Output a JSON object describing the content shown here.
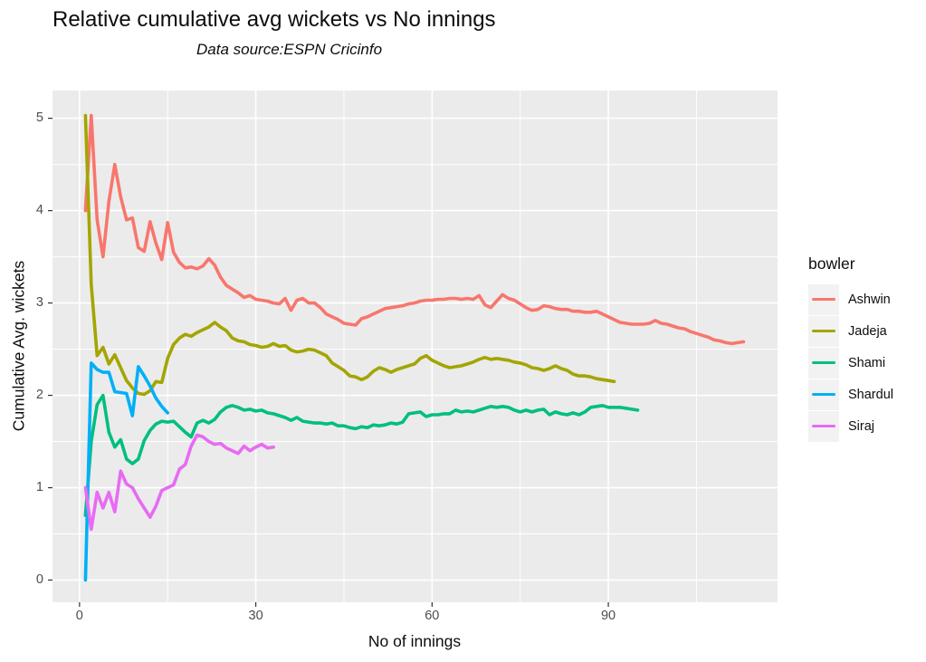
{
  "title": "Relative cumulative avg wickets vs No innings",
  "subtitle": "Data source:ESPN Cricinfo",
  "chart_data": {
    "type": "line",
    "title": "Relative cumulative avg wickets vs No innings",
    "subtitle": "Data source:ESPN Cricinfo",
    "xlabel": "No of innings",
    "ylabel": "Cumulative Avg. wickets",
    "legend_title": "bowler",
    "legend_position": "right",
    "grid": true,
    "xticks": [
      0,
      30,
      60,
      90
    ],
    "yticks": [
      0,
      1,
      2,
      3,
      4,
      5
    ],
    "xlim": [
      -4.6,
      118.8
    ],
    "ylim": [
      -0.24,
      5.3
    ],
    "x_unit": "innings number, first point at x=1, step 1",
    "colors": {
      "panel_bg": "#EBEBEB",
      "grid": "#FFFFFF",
      "axis_text": "#4D4D4D",
      "tick_mark": "#333333",
      "legend_key_bg": "#F2F2F2"
    },
    "series": [
      {
        "name": "Ashwin",
        "color": "#F8766D",
        "x_start": 1,
        "values": [
          4.0,
          5.03,
          3.9,
          3.5,
          4.1,
          4.5,
          4.15,
          3.9,
          3.92,
          3.6,
          3.56,
          3.88,
          3.65,
          3.47,
          3.87,
          3.55,
          3.44,
          3.38,
          3.39,
          3.37,
          3.4,
          3.48,
          3.41,
          3.28,
          3.19,
          3.15,
          3.11,
          3.06,
          3.08,
          3.04,
          3.03,
          3.02,
          3.0,
          2.99,
          3.05,
          2.92,
          3.03,
          3.05,
          3.0,
          3.0,
          2.95,
          2.88,
          2.85,
          2.82,
          2.78,
          2.77,
          2.76,
          2.83,
          2.85,
          2.88,
          2.91,
          2.94,
          2.95,
          2.96,
          2.97,
          2.99,
          3.0,
          3.02,
          3.03,
          3.03,
          3.04,
          3.04,
          3.05,
          3.05,
          3.04,
          3.05,
          3.04,
          3.08,
          2.98,
          2.95,
          3.02,
          3.09,
          3.05,
          3.03,
          2.99,
          2.95,
          2.92,
          2.93,
          2.97,
          2.96,
          2.94,
          2.93,
          2.93,
          2.91,
          2.91,
          2.9,
          2.9,
          2.91,
          2.88,
          2.85,
          2.82,
          2.79,
          2.78,
          2.77,
          2.77,
          2.77,
          2.78,
          2.81,
          2.78,
          2.77,
          2.75,
          2.73,
          2.72,
          2.69,
          2.67,
          2.65,
          2.63,
          2.6,
          2.59,
          2.57,
          2.56,
          2.57,
          2.58
        ]
      },
      {
        "name": "Jadeja",
        "color": "#A3A500",
        "x_start": 1,
        "values": [
          5.03,
          3.2,
          2.43,
          2.52,
          2.34,
          2.44,
          2.3,
          2.16,
          2.08,
          2.02,
          2.01,
          2.05,
          2.15,
          2.14,
          2.4,
          2.55,
          2.62,
          2.66,
          2.64,
          2.68,
          2.71,
          2.74,
          2.79,
          2.74,
          2.7,
          2.62,
          2.59,
          2.58,
          2.55,
          2.54,
          2.52,
          2.53,
          2.56,
          2.53,
          2.54,
          2.49,
          2.47,
          2.48,
          2.5,
          2.49,
          2.46,
          2.43,
          2.35,
          2.31,
          2.27,
          2.21,
          2.2,
          2.17,
          2.2,
          2.26,
          2.3,
          2.28,
          2.25,
          2.28,
          2.3,
          2.32,
          2.34,
          2.4,
          2.43,
          2.38,
          2.35,
          2.32,
          2.3,
          2.31,
          2.32,
          2.34,
          2.36,
          2.39,
          2.41,
          2.39,
          2.4,
          2.39,
          2.38,
          2.36,
          2.35,
          2.33,
          2.3,
          2.29,
          2.27,
          2.29,
          2.32,
          2.29,
          2.27,
          2.23,
          2.21,
          2.21,
          2.2,
          2.18,
          2.17,
          2.16,
          2.15
        ]
      },
      {
        "name": "Shami",
        "color": "#00BF7D",
        "x_start": 1,
        "values": [
          0.7,
          1.5,
          1.9,
          2.0,
          1.6,
          1.44,
          1.52,
          1.31,
          1.26,
          1.31,
          1.51,
          1.62,
          1.69,
          1.72,
          1.71,
          1.72,
          1.66,
          1.6,
          1.55,
          1.7,
          1.73,
          1.7,
          1.74,
          1.82,
          1.87,
          1.89,
          1.87,
          1.84,
          1.85,
          1.83,
          1.84,
          1.81,
          1.8,
          1.78,
          1.76,
          1.73,
          1.76,
          1.72,
          1.71,
          1.7,
          1.7,
          1.69,
          1.7,
          1.67,
          1.67,
          1.65,
          1.64,
          1.66,
          1.65,
          1.68,
          1.67,
          1.68,
          1.7,
          1.69,
          1.71,
          1.8,
          1.81,
          1.82,
          1.77,
          1.79,
          1.79,
          1.8,
          1.8,
          1.84,
          1.82,
          1.83,
          1.82,
          1.84,
          1.86,
          1.88,
          1.87,
          1.88,
          1.87,
          1.84,
          1.82,
          1.84,
          1.82,
          1.84,
          1.85,
          1.79,
          1.82,
          1.8,
          1.79,
          1.81,
          1.79,
          1.82,
          1.87,
          1.88,
          1.89,
          1.87,
          1.87,
          1.87,
          1.86,
          1.85,
          1.84
        ]
      },
      {
        "name": "Shardul",
        "color": "#00B0F6",
        "x_start": 1,
        "values": [
          0.0,
          2.35,
          2.28,
          2.25,
          2.25,
          2.04,
          2.03,
          2.02,
          1.78,
          2.31,
          2.21,
          2.1,
          1.97,
          1.88,
          1.81
        ]
      },
      {
        "name": "Siraj",
        "color": "#E76BF3",
        "x_start": 1,
        "values": [
          1.0,
          0.55,
          0.95,
          0.78,
          0.95,
          0.74,
          1.18,
          1.04,
          1.0,
          0.88,
          0.78,
          0.68,
          0.8,
          0.97,
          1.0,
          1.03,
          1.2,
          1.25,
          1.45,
          1.57,
          1.55,
          1.5,
          1.47,
          1.48,
          1.43,
          1.4,
          1.37,
          1.45,
          1.4,
          1.44,
          1.47,
          1.43,
          1.44
        ]
      }
    ]
  }
}
